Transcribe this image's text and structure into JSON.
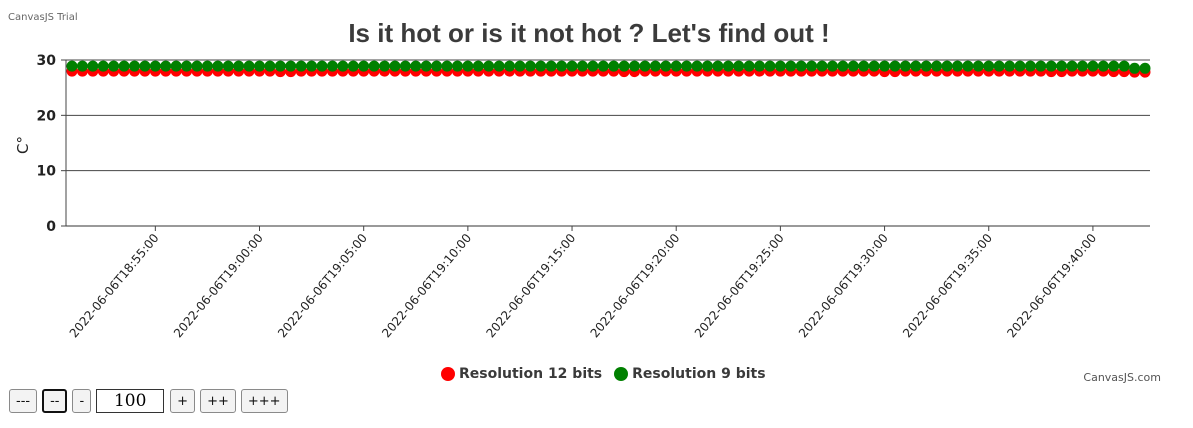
{
  "trial_label": "CanvasJS Trial",
  "credit": "CanvasJS.com",
  "chart_data": {
    "type": "scatter",
    "title": "Is it hot or is it not hot ? Let's find out !",
    "ylabel": "C°",
    "xlabel": "",
    "ylim": [
      0,
      30
    ],
    "yticks": [
      0,
      10,
      20,
      30
    ],
    "xlim": [
      "2022-06-06T18:51:00",
      "2022-06-06T19:42:30"
    ],
    "xticks": [
      "2022-06-06T18:55:00",
      "2022-06-06T19:00:00",
      "2022-06-06T19:05:00",
      "2022-06-06T19:10:00",
      "2022-06-06T19:15:00",
      "2022-06-06T19:20:00",
      "2022-06-06T19:25:00",
      "2022-06-06T19:30:00",
      "2022-06-06T19:35:00",
      "2022-06-06T19:40:00"
    ],
    "grid": true,
    "legend": "bottom-center",
    "sample_interval_seconds": 30,
    "series": [
      {
        "name": "Resolution 12 bits",
        "color": "#ff0000",
        "points": [
          [
            "2022-06-06T18:51:00",
            28.0
          ],
          [
            "2022-06-06T18:51:30",
            28.0
          ],
          [
            "2022-06-06T18:52:00",
            28.0
          ],
          [
            "2022-06-06T18:52:30",
            28.0
          ],
          [
            "2022-06-06T18:53:00",
            28.0
          ],
          [
            "2022-06-06T18:53:30",
            28.0
          ],
          [
            "2022-06-06T18:54:00",
            28.0
          ],
          [
            "2022-06-06T18:54:30",
            28.0
          ],
          [
            "2022-06-06T18:55:00",
            28.0
          ],
          [
            "2022-06-06T18:55:30",
            28.0
          ],
          [
            "2022-06-06T18:56:00",
            28.0
          ],
          [
            "2022-06-06T18:56:30",
            28.0
          ],
          [
            "2022-06-06T18:57:00",
            28.0
          ],
          [
            "2022-06-06T18:57:30",
            28.0
          ],
          [
            "2022-06-06T18:58:00",
            28.0
          ],
          [
            "2022-06-06T18:58:30",
            28.0
          ],
          [
            "2022-06-06T18:59:00",
            28.0
          ],
          [
            "2022-06-06T18:59:30",
            28.0
          ],
          [
            "2022-06-06T19:00:00",
            28.0
          ],
          [
            "2022-06-06T19:00:30",
            28.0
          ],
          [
            "2022-06-06T19:01:00",
            27.9
          ],
          [
            "2022-06-06T19:01:30",
            27.9
          ],
          [
            "2022-06-06T19:02:00",
            28.0
          ],
          [
            "2022-06-06T19:02:30",
            28.0
          ],
          [
            "2022-06-06T19:03:00",
            28.0
          ],
          [
            "2022-06-06T19:03:30",
            28.0
          ],
          [
            "2022-06-06T19:04:00",
            28.0
          ],
          [
            "2022-06-06T19:04:30",
            28.0
          ],
          [
            "2022-06-06T19:05:00",
            28.0
          ],
          [
            "2022-06-06T19:05:30",
            28.0
          ],
          [
            "2022-06-06T19:06:00",
            28.0
          ],
          [
            "2022-06-06T19:06:30",
            28.0
          ],
          [
            "2022-06-06T19:07:00",
            28.0
          ],
          [
            "2022-06-06T19:07:30",
            28.0
          ],
          [
            "2022-06-06T19:08:00",
            28.0
          ],
          [
            "2022-06-06T19:08:30",
            28.0
          ],
          [
            "2022-06-06T19:09:00",
            28.0
          ],
          [
            "2022-06-06T19:09:30",
            28.0
          ],
          [
            "2022-06-06T19:10:00",
            28.0
          ],
          [
            "2022-06-06T19:10:30",
            28.0
          ],
          [
            "2022-06-06T19:11:00",
            28.0
          ],
          [
            "2022-06-06T19:11:30",
            28.0
          ],
          [
            "2022-06-06T19:12:00",
            28.0
          ],
          [
            "2022-06-06T19:12:30",
            28.0
          ],
          [
            "2022-06-06T19:13:00",
            28.0
          ],
          [
            "2022-06-06T19:13:30",
            28.0
          ],
          [
            "2022-06-06T19:14:00",
            28.0
          ],
          [
            "2022-06-06T19:14:30",
            28.0
          ],
          [
            "2022-06-06T19:15:00",
            28.0
          ],
          [
            "2022-06-06T19:15:30",
            28.0
          ],
          [
            "2022-06-06T19:16:00",
            28.0
          ],
          [
            "2022-06-06T19:16:30",
            28.0
          ],
          [
            "2022-06-06T19:17:00",
            28.0
          ],
          [
            "2022-06-06T19:17:30",
            27.9
          ],
          [
            "2022-06-06T19:18:00",
            27.9
          ],
          [
            "2022-06-06T19:18:30",
            28.0
          ],
          [
            "2022-06-06T19:19:00",
            28.0
          ],
          [
            "2022-06-06T19:19:30",
            28.0
          ],
          [
            "2022-06-06T19:20:00",
            28.0
          ],
          [
            "2022-06-06T19:20:30",
            28.0
          ],
          [
            "2022-06-06T19:21:00",
            28.0
          ],
          [
            "2022-06-06T19:21:30",
            28.0
          ],
          [
            "2022-06-06T19:22:00",
            28.0
          ],
          [
            "2022-06-06T19:22:30",
            28.0
          ],
          [
            "2022-06-06T19:23:00",
            28.0
          ],
          [
            "2022-06-06T19:23:30",
            28.0
          ],
          [
            "2022-06-06T19:24:00",
            28.0
          ],
          [
            "2022-06-06T19:24:30",
            28.0
          ],
          [
            "2022-06-06T19:25:00",
            28.0
          ],
          [
            "2022-06-06T19:25:30",
            28.0
          ],
          [
            "2022-06-06T19:26:00",
            28.0
          ],
          [
            "2022-06-06T19:26:30",
            28.0
          ],
          [
            "2022-06-06T19:27:00",
            28.0
          ],
          [
            "2022-06-06T19:27:30",
            28.0
          ],
          [
            "2022-06-06T19:28:00",
            28.0
          ],
          [
            "2022-06-06T19:28:30",
            28.0
          ],
          [
            "2022-06-06T19:29:00",
            28.0
          ],
          [
            "2022-06-06T19:29:30",
            28.0
          ],
          [
            "2022-06-06T19:30:00",
            27.9
          ],
          [
            "2022-06-06T19:30:30",
            27.9
          ],
          [
            "2022-06-06T19:31:00",
            28.0
          ],
          [
            "2022-06-06T19:31:30",
            28.0
          ],
          [
            "2022-06-06T19:32:00",
            28.0
          ],
          [
            "2022-06-06T19:32:30",
            28.0
          ],
          [
            "2022-06-06T19:33:00",
            28.0
          ],
          [
            "2022-06-06T19:33:30",
            28.0
          ],
          [
            "2022-06-06T19:34:00",
            28.0
          ],
          [
            "2022-06-06T19:34:30",
            28.0
          ],
          [
            "2022-06-06T19:35:00",
            28.0
          ],
          [
            "2022-06-06T19:35:30",
            28.0
          ],
          [
            "2022-06-06T19:36:00",
            28.0
          ],
          [
            "2022-06-06T19:36:30",
            28.0
          ],
          [
            "2022-06-06T19:37:00",
            28.0
          ],
          [
            "2022-06-06T19:37:30",
            28.0
          ],
          [
            "2022-06-06T19:38:00",
            27.9
          ],
          [
            "2022-06-06T19:38:30",
            27.9
          ],
          [
            "2022-06-06T19:39:00",
            28.0
          ],
          [
            "2022-06-06T19:39:30",
            28.0
          ],
          [
            "2022-06-06T19:40:00",
            28.0
          ],
          [
            "2022-06-06T19:40:30",
            28.0
          ],
          [
            "2022-06-06T19:41:00",
            27.9
          ],
          [
            "2022-06-06T19:41:30",
            27.9
          ],
          [
            "2022-06-06T19:42:00",
            27.8
          ],
          [
            "2022-06-06T19:42:30",
            27.8
          ]
        ]
      },
      {
        "name": "Resolution 9 bits",
        "color": "#008000",
        "points": [
          [
            "2022-06-06T18:51:00",
            28.9
          ],
          [
            "2022-06-06T18:51:30",
            28.9
          ],
          [
            "2022-06-06T18:52:00",
            28.9
          ],
          [
            "2022-06-06T18:52:30",
            28.9
          ],
          [
            "2022-06-06T18:53:00",
            28.9
          ],
          [
            "2022-06-06T18:53:30",
            28.9
          ],
          [
            "2022-06-06T18:54:00",
            28.9
          ],
          [
            "2022-06-06T18:54:30",
            28.9
          ],
          [
            "2022-06-06T18:55:00",
            28.9
          ],
          [
            "2022-06-06T18:55:30",
            28.9
          ],
          [
            "2022-06-06T18:56:00",
            28.9
          ],
          [
            "2022-06-06T18:56:30",
            28.9
          ],
          [
            "2022-06-06T18:57:00",
            28.9
          ],
          [
            "2022-06-06T18:57:30",
            28.9
          ],
          [
            "2022-06-06T18:58:00",
            28.9
          ],
          [
            "2022-06-06T18:58:30",
            28.9
          ],
          [
            "2022-06-06T18:59:00",
            28.9
          ],
          [
            "2022-06-06T18:59:30",
            28.9
          ],
          [
            "2022-06-06T19:00:00",
            28.9
          ],
          [
            "2022-06-06T19:00:30",
            28.9
          ],
          [
            "2022-06-06T19:01:00",
            28.9
          ],
          [
            "2022-06-06T19:01:30",
            28.9
          ],
          [
            "2022-06-06T19:02:00",
            28.9
          ],
          [
            "2022-06-06T19:02:30",
            28.9
          ],
          [
            "2022-06-06T19:03:00",
            28.9
          ],
          [
            "2022-06-06T19:03:30",
            28.9
          ],
          [
            "2022-06-06T19:04:00",
            28.9
          ],
          [
            "2022-06-06T19:04:30",
            28.9
          ],
          [
            "2022-06-06T19:05:00",
            28.9
          ],
          [
            "2022-06-06T19:05:30",
            28.9
          ],
          [
            "2022-06-06T19:06:00",
            28.9
          ],
          [
            "2022-06-06T19:06:30",
            28.9
          ],
          [
            "2022-06-06T19:07:00",
            28.9
          ],
          [
            "2022-06-06T19:07:30",
            28.9
          ],
          [
            "2022-06-06T19:08:00",
            28.9
          ],
          [
            "2022-06-06T19:08:30",
            28.9
          ],
          [
            "2022-06-06T19:09:00",
            28.9
          ],
          [
            "2022-06-06T19:09:30",
            28.9
          ],
          [
            "2022-06-06T19:10:00",
            28.9
          ],
          [
            "2022-06-06T19:10:30",
            28.9
          ],
          [
            "2022-06-06T19:11:00",
            28.9
          ],
          [
            "2022-06-06T19:11:30",
            28.9
          ],
          [
            "2022-06-06T19:12:00",
            28.9
          ],
          [
            "2022-06-06T19:12:30",
            28.9
          ],
          [
            "2022-06-06T19:13:00",
            28.9
          ],
          [
            "2022-06-06T19:13:30",
            28.9
          ],
          [
            "2022-06-06T19:14:00",
            28.9
          ],
          [
            "2022-06-06T19:14:30",
            28.9
          ],
          [
            "2022-06-06T19:15:00",
            28.9
          ],
          [
            "2022-06-06T19:15:30",
            28.9
          ],
          [
            "2022-06-06T19:16:00",
            28.9
          ],
          [
            "2022-06-06T19:16:30",
            28.9
          ],
          [
            "2022-06-06T19:17:00",
            28.9
          ],
          [
            "2022-06-06T19:17:30",
            28.9
          ],
          [
            "2022-06-06T19:18:00",
            28.9
          ],
          [
            "2022-06-06T19:18:30",
            28.9
          ],
          [
            "2022-06-06T19:19:00",
            28.9
          ],
          [
            "2022-06-06T19:19:30",
            28.9
          ],
          [
            "2022-06-06T19:20:00",
            28.9
          ],
          [
            "2022-06-06T19:20:30",
            28.9
          ],
          [
            "2022-06-06T19:21:00",
            28.9
          ],
          [
            "2022-06-06T19:21:30",
            28.9
          ],
          [
            "2022-06-06T19:22:00",
            28.9
          ],
          [
            "2022-06-06T19:22:30",
            28.9
          ],
          [
            "2022-06-06T19:23:00",
            28.9
          ],
          [
            "2022-06-06T19:23:30",
            28.9
          ],
          [
            "2022-06-06T19:24:00",
            28.9
          ],
          [
            "2022-06-06T19:24:30",
            28.9
          ],
          [
            "2022-06-06T19:25:00",
            28.9
          ],
          [
            "2022-06-06T19:25:30",
            28.9
          ],
          [
            "2022-06-06T19:26:00",
            28.9
          ],
          [
            "2022-06-06T19:26:30",
            28.9
          ],
          [
            "2022-06-06T19:27:00",
            28.9
          ],
          [
            "2022-06-06T19:27:30",
            28.9
          ],
          [
            "2022-06-06T19:28:00",
            28.9
          ],
          [
            "2022-06-06T19:28:30",
            28.9
          ],
          [
            "2022-06-06T19:29:00",
            28.9
          ],
          [
            "2022-06-06T19:29:30",
            28.9
          ],
          [
            "2022-06-06T19:30:00",
            28.9
          ],
          [
            "2022-06-06T19:30:30",
            28.9
          ],
          [
            "2022-06-06T19:31:00",
            28.9
          ],
          [
            "2022-06-06T19:31:30",
            28.9
          ],
          [
            "2022-06-06T19:32:00",
            28.9
          ],
          [
            "2022-06-06T19:32:30",
            28.9
          ],
          [
            "2022-06-06T19:33:00",
            28.9
          ],
          [
            "2022-06-06T19:33:30",
            28.9
          ],
          [
            "2022-06-06T19:34:00",
            28.9
          ],
          [
            "2022-06-06T19:34:30",
            28.9
          ],
          [
            "2022-06-06T19:35:00",
            28.9
          ],
          [
            "2022-06-06T19:35:30",
            28.9
          ],
          [
            "2022-06-06T19:36:00",
            28.9
          ],
          [
            "2022-06-06T19:36:30",
            28.9
          ],
          [
            "2022-06-06T19:37:00",
            28.9
          ],
          [
            "2022-06-06T19:37:30",
            28.9
          ],
          [
            "2022-06-06T19:38:00",
            28.9
          ],
          [
            "2022-06-06T19:38:30",
            28.9
          ],
          [
            "2022-06-06T19:39:00",
            28.9
          ],
          [
            "2022-06-06T19:39:30",
            28.9
          ],
          [
            "2022-06-06T19:40:00",
            28.9
          ],
          [
            "2022-06-06T19:40:30",
            28.9
          ],
          [
            "2022-06-06T19:41:00",
            28.9
          ],
          [
            "2022-06-06T19:41:30",
            28.9
          ],
          [
            "2022-06-06T19:42:00",
            28.5
          ],
          [
            "2022-06-06T19:42:30",
            28.5
          ]
        ]
      }
    ]
  },
  "controls": {
    "btn_minus3": "---",
    "btn_minus2": "--",
    "btn_minus1": "-",
    "value": "100",
    "btn_plus1": "+",
    "btn_plus2": "++",
    "btn_plus3": "+++"
  }
}
